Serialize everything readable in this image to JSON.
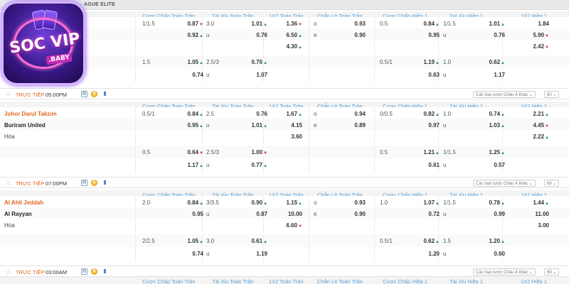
{
  "league": {
    "name": "AGUE ELITE"
  },
  "logo": {
    "brand": "SOC VIP",
    "sub": ".BABY"
  },
  "headers": [
    "Cược Chấp Toàn Trận",
    "Tài Xỉu Toàn Trận",
    "1X2 Toàn Trận",
    "Chẵn Lẻ Toàn Trận",
    "Cược Chấp Hiệp 1",
    "Tài Xỉu Hiệp 1",
    "1X2 Hiệp 1"
  ],
  "status_sel": "Các loại cược Châu Á khác",
  "matches": [
    {
      "home": "",
      "away": "",
      "draw": "",
      "status": {
        "live": "TRỰC TIẾP",
        "time": "05:00PM",
        "count": "60"
      },
      "rows": [
        [
          [
            "1/1.5",
            ""
          ],
          [
            "0.87",
            "d"
          ],
          [
            "3.0",
            ""
          ],
          [
            "1.01",
            "u"
          ],
          [
            "1.36",
            "d"
          ],
          [
            "o",
            ""
          ],
          [
            "0.93",
            ""
          ],
          [
            "0.5",
            ""
          ],
          [
            "0.84",
            "u"
          ],
          [
            "1/1.5",
            ""
          ],
          [
            "1.01",
            "u"
          ],
          [
            "1.84",
            ""
          ]
        ],
        [
          [
            "",
            ""
          ],
          [
            "0.92",
            "u"
          ],
          [
            "u",
            ""
          ],
          [
            "0.76",
            ""
          ],
          [
            "6.50",
            "u"
          ],
          [
            "e",
            ""
          ],
          [
            "0.90",
            ""
          ],
          [
            "",
            ""
          ],
          [
            "0.95",
            ""
          ],
          [
            "u",
            ""
          ],
          [
            "0.76",
            ""
          ],
          [
            "5.90",
            "d"
          ]
        ],
        [
          [
            "",
            ""
          ],
          [
            "",
            ""
          ],
          [
            "",
            ""
          ],
          [
            "",
            ""
          ],
          [
            "4.30",
            "u"
          ],
          [
            "",
            ""
          ],
          [
            "",
            ""
          ],
          [
            "",
            ""
          ],
          [
            "",
            ""
          ],
          [
            "",
            ""
          ],
          [
            "",
            ""
          ],
          [
            "2.42",
            "d"
          ]
        ],
        [
          [
            "1.5",
            ""
          ],
          [
            "1.05",
            "u"
          ],
          [
            "2.5/3",
            ""
          ],
          [
            "0.70",
            "u"
          ],
          [
            "",
            ""
          ],
          [
            "",
            ""
          ],
          [
            "",
            ""
          ],
          [
            "0.5/1",
            ""
          ],
          [
            "1.19",
            "u"
          ],
          [
            "1.0",
            ""
          ],
          [
            "0.62",
            "u"
          ],
          [
            "",
            ""
          ]
        ],
        [
          [
            "",
            ""
          ],
          [
            "0.74",
            ""
          ],
          [
            "u",
            ""
          ],
          [
            "1.07",
            ""
          ],
          [
            "",
            ""
          ],
          [
            "",
            ""
          ],
          [
            "",
            ""
          ],
          [
            "",
            ""
          ],
          [
            "0.63",
            ""
          ],
          [
            "u",
            ""
          ],
          [
            "1.17",
            ""
          ],
          [
            "",
            ""
          ]
        ]
      ]
    },
    {
      "home": "Johor Darul Takzim",
      "away": "Buriram United",
      "draw": "Hòa",
      "status": {
        "live": "TRỰC TIẾP",
        "time": "07:00PM",
        "count": "69"
      },
      "rows": [
        [
          [
            "0.5/1",
            ""
          ],
          [
            "0.84",
            "u"
          ],
          [
            "2.5",
            ""
          ],
          [
            "0.76",
            ""
          ],
          [
            "1.67",
            "u"
          ],
          [
            "o",
            ""
          ],
          [
            "0.94",
            ""
          ],
          [
            "0/0.5",
            ""
          ],
          [
            "0.82",
            "u"
          ],
          [
            "1.0",
            ""
          ],
          [
            "0.74",
            "u"
          ],
          [
            "2.21",
            "u"
          ]
        ],
        [
          [
            "",
            ""
          ],
          [
            "0.95",
            "u"
          ],
          [
            "u",
            ""
          ],
          [
            "1.01",
            "u"
          ],
          [
            "4.15",
            ""
          ],
          [
            "e",
            ""
          ],
          [
            "0.89",
            ""
          ],
          [
            "",
            ""
          ],
          [
            "0.97",
            ""
          ],
          [
            "u",
            ""
          ],
          [
            "1.03",
            "u"
          ],
          [
            "4.45",
            "d"
          ]
        ],
        [
          [
            "",
            ""
          ],
          [
            "",
            ""
          ],
          [
            "",
            ""
          ],
          [
            "",
            ""
          ],
          [
            "3.60",
            ""
          ],
          [
            "",
            ""
          ],
          [
            "",
            ""
          ],
          [
            "",
            ""
          ],
          [
            "",
            ""
          ],
          [
            "",
            ""
          ],
          [
            "",
            ""
          ],
          [
            "2.22",
            "u"
          ]
        ],
        [
          [
            "0.5",
            ""
          ],
          [
            "0.64",
            "d"
          ],
          [
            "2.5/3",
            ""
          ],
          [
            "1.00",
            "d"
          ],
          [
            "",
            ""
          ],
          [
            "",
            ""
          ],
          [
            "",
            ""
          ],
          [
            "0.5",
            ""
          ],
          [
            "1.21",
            "u"
          ],
          [
            "1/1.5",
            ""
          ],
          [
            "1.25",
            "u"
          ],
          [
            "",
            ""
          ]
        ],
        [
          [
            "",
            ""
          ],
          [
            "1.17",
            "u"
          ],
          [
            "u",
            ""
          ],
          [
            "0.77",
            "u"
          ],
          [
            "",
            ""
          ],
          [
            "",
            ""
          ],
          [
            "",
            ""
          ],
          [
            "",
            ""
          ],
          [
            "0.61",
            ""
          ],
          [
            "u",
            ""
          ],
          [
            "0.57",
            ""
          ],
          [
            "",
            ""
          ]
        ]
      ]
    },
    {
      "home": "Al Ahli Jeddah",
      "away": "Al Rayyan",
      "draw": "Hòa",
      "status": {
        "live": "TRỰC TIẾP",
        "time": "03:00AM",
        "count": "69"
      },
      "rows": [
        [
          [
            "2.0",
            ""
          ],
          [
            "0.84",
            "u"
          ],
          [
            "3/3.5",
            ""
          ],
          [
            "0.90",
            "u"
          ],
          [
            "1.15",
            "u"
          ],
          [
            "o",
            ""
          ],
          [
            "0.93",
            ""
          ],
          [
            "1.0",
            ""
          ],
          [
            "1.07",
            "u"
          ],
          [
            "1/1.5",
            ""
          ],
          [
            "0.78",
            "u"
          ],
          [
            "1.44",
            "u"
          ]
        ],
        [
          [
            "",
            ""
          ],
          [
            "0.95",
            ""
          ],
          [
            "u",
            ""
          ],
          [
            "0.87",
            ""
          ],
          [
            "10.00",
            ""
          ],
          [
            "e",
            ""
          ],
          [
            "0.90",
            ""
          ],
          [
            "",
            ""
          ],
          [
            "0.72",
            ""
          ],
          [
            "u",
            ""
          ],
          [
            "0.99",
            ""
          ],
          [
            "11.00",
            ""
          ]
        ],
        [
          [
            "",
            ""
          ],
          [
            "",
            ""
          ],
          [
            "",
            ""
          ],
          [
            "",
            ""
          ],
          [
            "6.60",
            "d"
          ],
          [
            "",
            ""
          ],
          [
            "",
            ""
          ],
          [
            "",
            ""
          ],
          [
            "",
            ""
          ],
          [
            "",
            ""
          ],
          [
            "",
            ""
          ],
          [
            "3.00",
            ""
          ]
        ],
        [
          [
            "2/2.5",
            ""
          ],
          [
            "1.05",
            "u"
          ],
          [
            "3.0",
            ""
          ],
          [
            "0.61",
            "u"
          ],
          [
            "",
            ""
          ],
          [
            "",
            ""
          ],
          [
            "",
            ""
          ],
          [
            "0.5/1",
            ""
          ],
          [
            "0.62",
            "u"
          ],
          [
            "1.5",
            ""
          ],
          [
            "1.20",
            "u"
          ],
          [
            "",
            ""
          ]
        ],
        [
          [
            "",
            ""
          ],
          [
            "0.74",
            ""
          ],
          [
            "u",
            ""
          ],
          [
            "1.19",
            ""
          ],
          [
            "",
            ""
          ],
          [
            "",
            ""
          ],
          [
            "",
            ""
          ],
          [
            "",
            ""
          ],
          [
            "1.20",
            ""
          ],
          [
            "u",
            ""
          ],
          [
            "0.60",
            ""
          ],
          [
            "",
            ""
          ]
        ]
      ]
    }
  ]
}
